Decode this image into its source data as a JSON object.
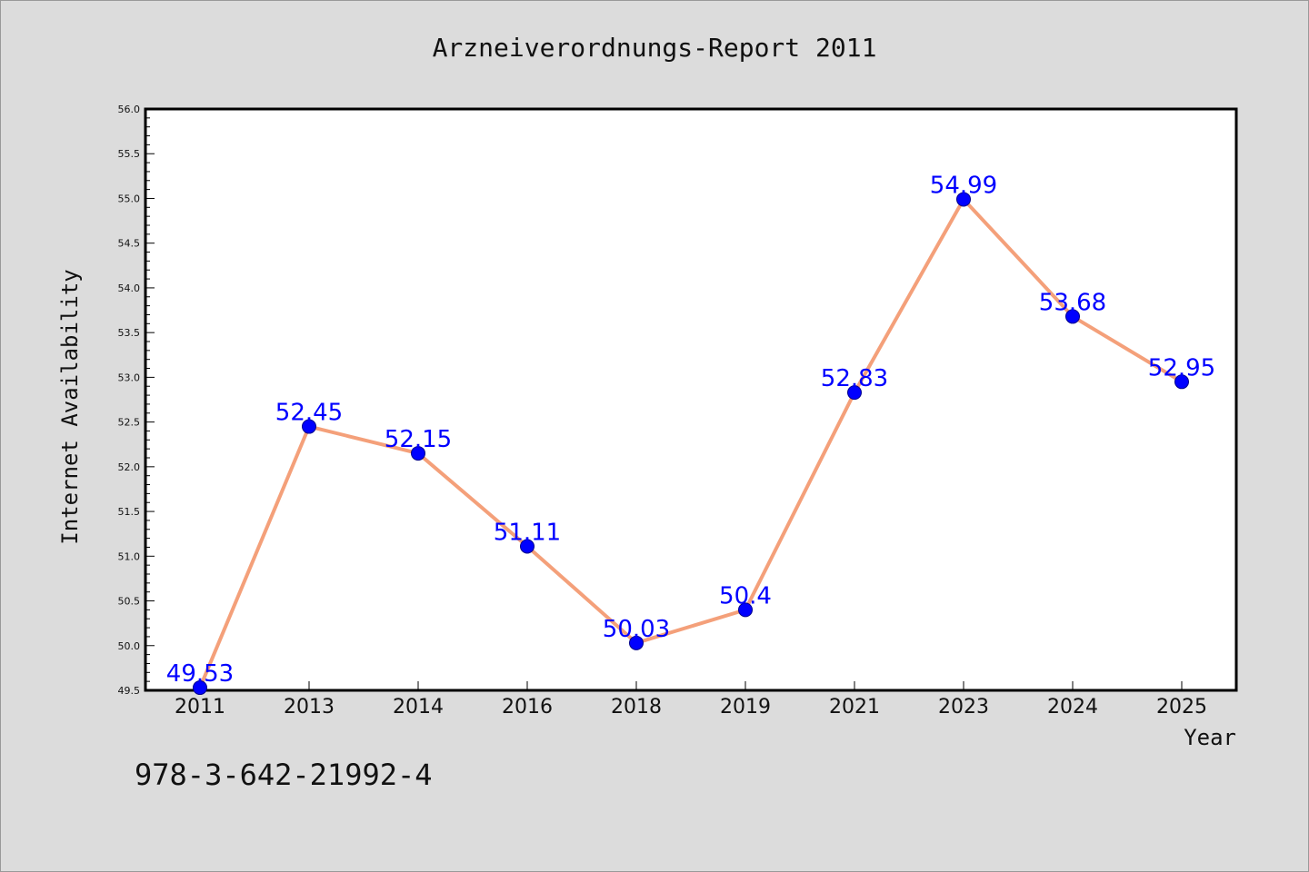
{
  "chart_data": {
    "type": "line",
    "title": "Arzneiverordnungs-Report 2011",
    "xlabel": "Year",
    "ylabel": "Internet Availability",
    "categories": [
      "2011",
      "2013",
      "2014",
      "2016",
      "2018",
      "2019",
      "2021",
      "2023",
      "2024",
      "2025"
    ],
    "series": [
      {
        "values": [
          49.53,
          52.45,
          52.15,
          51.11,
          50.03,
          50.4,
          52.83,
          54.99,
          53.68,
          52.95
        ]
      }
    ],
    "data_labels": [
      "49.53",
      "52.45",
      "52.15",
      "51.11",
      "50.03",
      "50.4",
      "52.83",
      "54.99",
      "53.68",
      "52.95"
    ],
    "ylim": [
      49.5,
      56.0
    ],
    "yticks": [
      "49.5",
      "50.0",
      "50.5",
      "51.0",
      "51.5",
      "52.0",
      "52.5",
      "53.0",
      "53.5",
      "54.0",
      "54.5",
      "55.0",
      "55.5",
      "56.0"
    ],
    "grid": false,
    "legend": "none",
    "colors": {
      "line": "#f4a07a",
      "marker": "#0000ff",
      "data_label": "#0000ff",
      "background": "#dcdcdc",
      "plot_area": "#ffffff"
    }
  },
  "footnote": "978-3-642-21992-4"
}
